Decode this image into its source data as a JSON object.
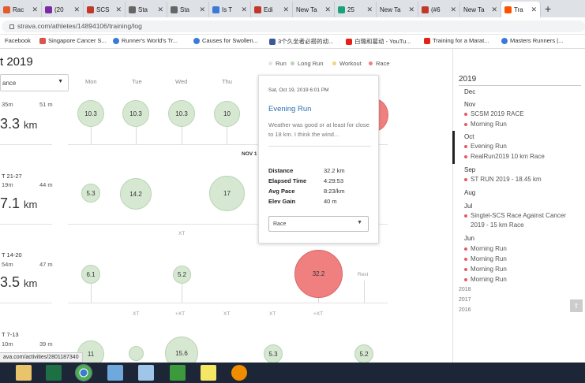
{
  "browser": {
    "tabs": [
      {
        "title": "Rac",
        "color": "#e25b2c"
      },
      {
        "title": "(20",
        "color": "#7b2aa6"
      },
      {
        "title": "SCS",
        "color": "#c0392b"
      },
      {
        "title": "Sta",
        "color": "#666666"
      },
      {
        "title": "Sta",
        "color": "#666666"
      },
      {
        "title": "Is T",
        "color": "#3b7ad9"
      },
      {
        "title": "Edi",
        "color": "#c0392b"
      },
      {
        "title": "New Ta",
        "color": "#999999"
      },
      {
        "title": "25",
        "color": "#1aa37a"
      },
      {
        "title": "New Ta",
        "color": "#999999"
      },
      {
        "title": "(#6",
        "color": "#444444"
      },
      {
        "title": "New Ta",
        "color": "#999999"
      },
      {
        "title": "Tra",
        "color": "#fc5200"
      }
    ],
    "new_tab_symbol": "+",
    "url": "strava.com/athletes/14894106/training/log",
    "bookmarks": [
      {
        "label": "Facebook",
        "color": "#3b5998"
      },
      {
        "label": "Singapore Cancer S...",
        "color": "#d9534f"
      },
      {
        "label": "Runner's World's Tr...",
        "color": "#3b7ad9"
      },
      {
        "label": "Causes for Swollen...",
        "color": "#3b7ad9"
      },
      {
        "label": "3个久坐者必搭的动...",
        "color": "#3b5998"
      },
      {
        "label": "白璐和葛动 - YouTu...",
        "color": "#e62117"
      },
      {
        "label": "Training for a Marat...",
        "color": "#e62117"
      },
      {
        "label": "Masters Runners |...",
        "color": "#3b7ad9"
      }
    ]
  },
  "page": {
    "title_fragment": "t 2019",
    "type_select": "ance",
    "legend": [
      {
        "label": "Run",
        "color": "#d6e8d2"
      },
      {
        "label": "Long Run",
        "color": "#b9d4b3"
      },
      {
        "label": "Workout",
        "color": "#f2d57e"
      },
      {
        "label": "Race",
        "color": "#f08080"
      }
    ],
    "days": [
      "Mon",
      "Tue",
      "Wed",
      "Thu"
    ],
    "nov_label": "NOV 1",
    "weeks": [
      {
        "range": "",
        "time": "35m",
        "time2": "51 m",
        "dist": "3.3",
        "unit": "km"
      },
      {
        "range": "T 21-27",
        "time": "19m",
        "time2": "44 m",
        "dist": "7.1",
        "unit": "km"
      },
      {
        "range": "T 14-20",
        "time": "54m",
        "time2": "47 m",
        "dist": "3.5",
        "unit": "km"
      },
      {
        "range": "T 7-13",
        "time": "10m",
        "time2": "39 m",
        "dist": "",
        "unit": ""
      }
    ],
    "bubbles": [
      "10.3",
      "10.3",
      "10.3",
      "10",
      "",
      "5.3",
      "14.2",
      "17",
      "6.1",
      "5.2",
      "32.2",
      "11",
      "",
      "15.6",
      "5.3",
      "5.2"
    ],
    "xt_label": "XT",
    "plus_xt_label": "+XT",
    "rest_label": "Rest"
  },
  "popup": {
    "date": "Sat, Oct 19, 2019 6:01 PM",
    "title": "Evening Run",
    "description": "Weather was good or at least for close to 18 km. I think the wind...",
    "stats": [
      {
        "label": "Distance",
        "value": "32.2 km"
      },
      {
        "label": "Elapsed Time",
        "value": "4:29:53"
      },
      {
        "label": "Avg Pace",
        "value": "8:23/km"
      },
      {
        "label": "Elev Gain",
        "value": "40 m"
      }
    ],
    "run_type": "Race"
  },
  "sidebar": {
    "year": "2019",
    "months": [
      "Dec",
      "Nov",
      "Oct",
      "Sep",
      "Aug",
      "Jul",
      "Jun"
    ],
    "nov_items": [
      "SCSM 2019 RACE",
      "Morning Run"
    ],
    "oct_items": [
      "Evening Run",
      "RealRun2019 10 km Race"
    ],
    "sep_items": [
      "ST RUN 2019 - 18.45 km"
    ],
    "jul_items": [
      "Singtel-SCS Race Against Cancer 2019 - 15 km Race"
    ],
    "jun_items": [
      "Morning Run",
      "Morning Run",
      "Morning Run",
      "Morning Run"
    ],
    "other_years": [
      "2018",
      "2017",
      "2016"
    ],
    "scroll_symbol": "⇧"
  },
  "status_url": "ava.com/activities/2801187340",
  "taskbar": [
    {
      "name": "file-explorer-icon",
      "color": "#e9c46a"
    },
    {
      "name": "excel-icon",
      "color": "#1d7044"
    },
    {
      "name": "chrome-icon",
      "color": "#4caf50"
    },
    {
      "name": "photos-icon",
      "color": "#6fa8dc"
    },
    {
      "name": "paint-icon",
      "color": "#9fc5e8"
    },
    {
      "name": "calculator-icon",
      "color": "#3c9a3c"
    },
    {
      "name": "sticky-notes-icon",
      "color": "#f5e663"
    },
    {
      "name": "firefox-icon",
      "color": "#f08c00"
    }
  ]
}
